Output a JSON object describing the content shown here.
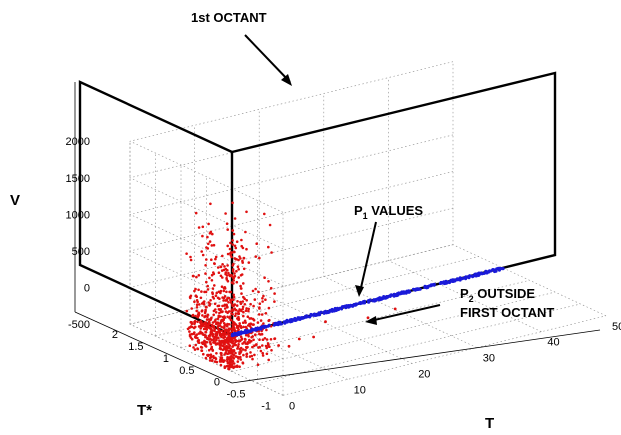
{
  "chart_data": {
    "type": "scatter",
    "title": "",
    "xlabel": "T",
    "ylabel": "T*",
    "zlabel": "V",
    "xlim": [
      0,
      50
    ],
    "ylim": [
      -1,
      2
    ],
    "zlim": [
      -500,
      2000
    ],
    "x_ticks": [
      "0",
      "10",
      "20",
      "30",
      "40",
      "50"
    ],
    "y_ticks": [
      "-1",
      "-0.5",
      "0",
      "0.5",
      "1",
      "1.5",
      "2"
    ],
    "z_ticks": [
      "-500",
      "0",
      "500",
      "1000",
      "1500",
      "2000"
    ],
    "grid": true,
    "colors": {
      "p1": "#1a1ad9",
      "p2": "#e01010"
    },
    "annotations": {
      "octant": "1st OCTANT",
      "p1_prefix": "P",
      "p1_sub": "1",
      "p1_suffix": " VALUES",
      "p2_prefix": "P",
      "p2_sub": "2",
      "p2_suffix": " OUTSIDE",
      "p2_line2": "FIRST OCTANT"
    },
    "series": [
      {
        "color": "#1a1ad9",
        "description_of_shape": "dense line along T axis",
        "x_range": [
          0,
          42
        ],
        "y": 0,
        "z": 0
      },
      {
        "color": "#e01010",
        "description_of_shape": "points with T*<0 and V<0 plus values near T*=-1",
        "points": [
          [
            1,
            -1.0,
            300
          ],
          [
            1.5,
            -0.99,
            600
          ],
          [
            2,
            -0.98,
            1000
          ],
          [
            0.5,
            -0.95,
            1400
          ],
          [
            3,
            -0.97,
            150
          ],
          [
            2,
            -0.9,
            50
          ],
          [
            4,
            -0.95,
            -100
          ],
          [
            6,
            -0.96,
            -300
          ],
          [
            8,
            -0.9,
            -350
          ],
          [
            10,
            -0.85,
            -420
          ],
          [
            12,
            -0.8,
            -380
          ],
          [
            15,
            -0.7,
            -450
          ],
          [
            20,
            -0.3,
            -480
          ],
          [
            25,
            -0.5,
            -470
          ],
          [
            30,
            -0.4,
            -490
          ]
        ]
      }
    ]
  }
}
